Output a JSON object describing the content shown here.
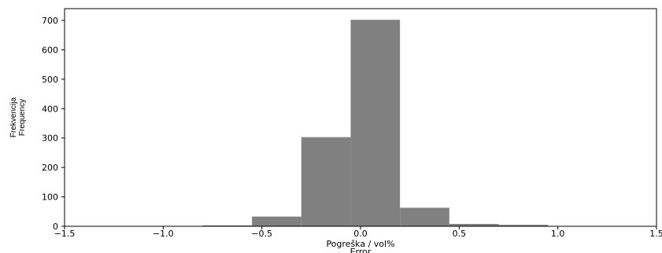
{
  "chart_data": {
    "type": "bar",
    "histogram": true,
    "bar_color": "#808080",
    "bin_edges": [
      -1.3,
      -1.05,
      -0.8,
      -0.55,
      -0.3,
      -0.05,
      0.2,
      0.45,
      0.7,
      0.95,
      1.2
    ],
    "values": [
      1,
      1,
      3,
      33,
      303,
      702,
      63,
      8,
      5,
      1
    ],
    "xlim": [
      -1.5,
      1.5
    ],
    "ylim": [
      0,
      740
    ],
    "xticks": [
      -1.5,
      -1.0,
      -0.5,
      0.0,
      0.5,
      1.0,
      1.5
    ],
    "xtick_labels": [
      "−1.5",
      "−1.0",
      "−0.5",
      "0.0",
      "0.5",
      "1.0",
      "1.5"
    ],
    "yticks": [
      0,
      100,
      200,
      300,
      400,
      500,
      600,
      700
    ],
    "ytick_labels": [
      "0",
      "100",
      "200",
      "300",
      "400",
      "500",
      "600",
      "700"
    ],
    "xlabel": "Pogreška / vol%",
    "xlabel2": "Error",
    "ylabel": "Frekvencija",
    "ylabel2": "Frequency",
    "grid": false,
    "legend": "none"
  }
}
